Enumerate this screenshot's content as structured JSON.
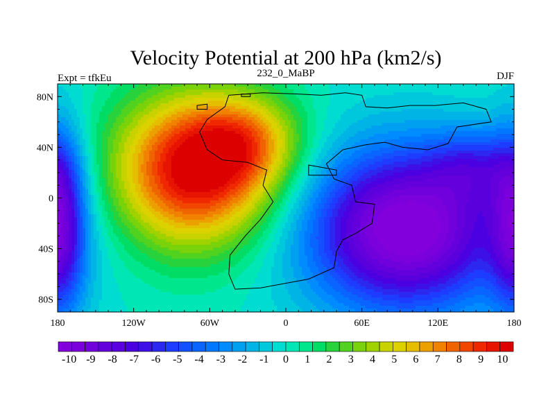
{
  "chart_data": {
    "type": "heatmap",
    "title": "Velocity Potential at 200 hPa (km2/s)",
    "left_label": "Expt = tfkEu",
    "center_label": "232_0_MaBP",
    "right_label": "DJF",
    "x_ticks": [
      {
        "value": -180,
        "label": "180"
      },
      {
        "value": -120,
        "label": "120W"
      },
      {
        "value": -60,
        "label": "60W"
      },
      {
        "value": 0,
        "label": "0"
      },
      {
        "value": 60,
        "label": "60E"
      },
      {
        "value": 120,
        "label": "120E"
      },
      {
        "value": 180,
        "label": "180"
      }
    ],
    "y_ticks": [
      {
        "value": 80,
        "label": "80N"
      },
      {
        "value": 40,
        "label": "40N"
      },
      {
        "value": 0,
        "label": "0"
      },
      {
        "value": -40,
        "label": "40S"
      },
      {
        "value": -80,
        "label": "80S"
      }
    ],
    "xlim": [
      -180,
      180
    ],
    "ylim": [
      -90,
      90
    ],
    "colorbar": {
      "min": -10.5,
      "max": 10.5,
      "step": 0.5,
      "labels": [
        "-10",
        "-9",
        "-8",
        "-7",
        "-6",
        "-5",
        "-4",
        "-3",
        "-2",
        "-1",
        "0",
        "1",
        "2",
        "3",
        "4",
        "5",
        "6",
        "7",
        "8",
        "9",
        "10"
      ],
      "colors": [
        "#8200dc",
        "#7a00dc",
        "#7000dc",
        "#6400dc",
        "#5a00dc",
        "#4a00e0",
        "#3c10e6",
        "#2d28f0",
        "#1e3cff",
        "#1450ff",
        "#0a64ff",
        "#0078ff",
        "#008cff",
        "#00a0f0",
        "#00b4e6",
        "#00c8dc",
        "#00dcd2",
        "#00e6b4",
        "#00e68c",
        "#00dc64",
        "#28d23c",
        "#50d21e",
        "#7ad20a",
        "#a0d200",
        "#c8d200",
        "#dcd200",
        "#e6be00",
        "#eca000",
        "#f08200",
        "#f06400",
        "#f04600",
        "#f02800",
        "#e61400",
        "#dc0000"
      ]
    },
    "field_centers": [
      {
        "lon": -72,
        "lat": 22,
        "amp": 10.5,
        "sigma_lon": 45,
        "sigma_lat": 42
      },
      {
        "lon": -30,
        "lat": 45,
        "amp": 4.0,
        "sigma_lon": 30,
        "sigma_lat": 25
      },
      {
        "lon": 95,
        "lat": -25,
        "amp": -11.0,
        "sigma_lon": 55,
        "sigma_lat": 45
      },
      {
        "lon": -178,
        "lat": -20,
        "amp": -7.0,
        "sigma_lon": 14,
        "sigma_lat": 50
      },
      {
        "lon": 150,
        "lat": 25,
        "amp": -3.5,
        "sigma_lon": 25,
        "sigma_lat": 20
      }
    ],
    "continent_outline": [
      [
        -45,
        81
      ],
      [
        -18,
        83
      ],
      [
        10,
        82
      ],
      [
        28,
        81
      ],
      [
        47,
        83
      ],
      [
        60,
        81
      ],
      [
        63,
        72
      ],
      [
        80,
        71
      ],
      [
        98,
        73
      ],
      [
        118,
        73
      ],
      [
        140,
        75
      ],
      [
        158,
        70
      ],
      [
        162,
        60
      ],
      [
        135,
        56
      ],
      [
        128,
        43
      ],
      [
        112,
        38
      ],
      [
        92,
        40
      ],
      [
        78,
        44
      ],
      [
        63,
        42
      ],
      [
        45,
        38
      ],
      [
        32,
        27
      ],
      [
        38,
        15
      ],
      [
        52,
        10
      ],
      [
        55,
        -3
      ],
      [
        70,
        -5
      ],
      [
        68,
        -20
      ],
      [
        55,
        -28
      ],
      [
        45,
        -33
      ],
      [
        40,
        -42
      ],
      [
        38,
        -55
      ],
      [
        18,
        -64
      ],
      [
        -20,
        -71
      ],
      [
        -40,
        -72
      ],
      [
        -45,
        -60
      ],
      [
        -44,
        -45
      ],
      [
        -32,
        -30
      ],
      [
        -20,
        -17
      ],
      [
        -10,
        -3
      ],
      [
        -18,
        10
      ],
      [
        -15,
        22
      ],
      [
        -30,
        28
      ],
      [
        -50,
        30
      ],
      [
        -62,
        38
      ],
      [
        -68,
        52
      ],
      [
        -62,
        62
      ],
      [
        -48,
        72
      ]
    ],
    "continent_holes": [
      [
        [
          -70,
          73
        ],
        [
          -62,
          74
        ],
        [
          -62,
          70
        ],
        [
          -70,
          70
        ]
      ],
      [
        [
          -35,
          82
        ],
        [
          -28,
          82
        ],
        [
          -28,
          80
        ],
        [
          -35,
          80
        ]
      ],
      [
        [
          18,
          26
        ],
        [
          40,
          22
        ],
        [
          40,
          18
        ],
        [
          18,
          18
        ]
      ]
    ]
  }
}
